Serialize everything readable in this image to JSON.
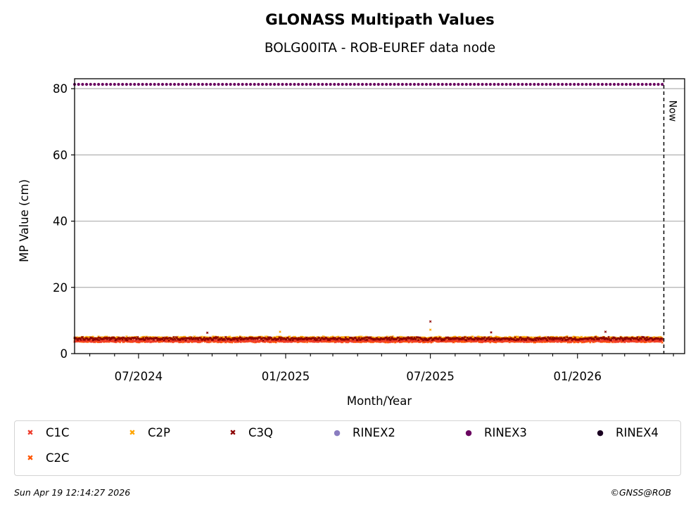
{
  "chart_data": {
    "type": "scatter",
    "title": "GLONASS Multipath Values",
    "subtitle": "BOLG00ITA - ROB-EUREF data node",
    "xlabel": "Month/Year",
    "ylabel": "MP Value (cm)",
    "ylim": [
      0,
      83
    ],
    "xlim": [
      "2024-04-12",
      "2026-05-15"
    ],
    "x_ticks": [
      "07/2024",
      "01/2025",
      "07/2025",
      "01/2026"
    ],
    "y_ticks": [
      0,
      20,
      40,
      60,
      80
    ],
    "grid": "horizontal",
    "now_marker": {
      "date": "2026-04-19",
      "label": "Now"
    },
    "date_range": [
      "2024-04-12",
      "2026-04-17"
    ],
    "series": [
      {
        "name": "C1C",
        "marker": "x",
        "color": "#ee3b2b",
        "mean": 3.9,
        "spread": 0.5,
        "outliers": []
      },
      {
        "name": "C2P",
        "marker": "x",
        "color": "#ffa500",
        "mean": 4.8,
        "spread": 0.4,
        "outliers": [
          {
            "x": "2024-12-25",
            "y": 6.6
          },
          {
            "x": "2025-07-01",
            "y": 7.2
          }
        ]
      },
      {
        "name": "C3Q",
        "marker": "x",
        "color": "#8b0000",
        "mean": 4.5,
        "spread": 0.55,
        "outliers": [
          {
            "x": "2024-09-25",
            "y": 6.3
          },
          {
            "x": "2025-07-01",
            "y": 9.7
          },
          {
            "x": "2025-09-15",
            "y": 6.4
          },
          {
            "x": "2026-02-05",
            "y": 6.6
          }
        ]
      },
      {
        "name": "C2C",
        "marker": "x",
        "color": "#ff5500",
        "mean": 3.7,
        "spread": 0.35,
        "outliers": []
      },
      {
        "name": "RINEX2",
        "marker": "o",
        "color": "#8a7dc0",
        "constant": null
      },
      {
        "name": "RINEX3",
        "marker": "o",
        "color": "#6a0560",
        "constant": 81.3
      },
      {
        "name": "RINEX4",
        "marker": "o",
        "color": "#1a0021",
        "constant": null
      }
    ]
  },
  "legend": {
    "entries": [
      {
        "label": "C1C",
        "color": "#ee3b2b",
        "symbol": "✖"
      },
      {
        "label": "C2P",
        "color": "#ffa500",
        "symbol": "✖"
      },
      {
        "label": "C3Q",
        "color": "#8b0000",
        "symbol": "✖"
      },
      {
        "label": "RINEX2",
        "color": "#8a7dc0",
        "symbol": "●"
      },
      {
        "label": "RINEX3",
        "color": "#6a0560",
        "symbol": "●"
      },
      {
        "label": "RINEX4",
        "color": "#1a0021",
        "symbol": "●"
      },
      {
        "label": "C2C",
        "color": "#ff5500",
        "symbol": "✖"
      }
    ]
  },
  "footer": {
    "timestamp": "Sun Apr 19 12:14:27 2026",
    "copyright": "©GNSS@ROB"
  }
}
